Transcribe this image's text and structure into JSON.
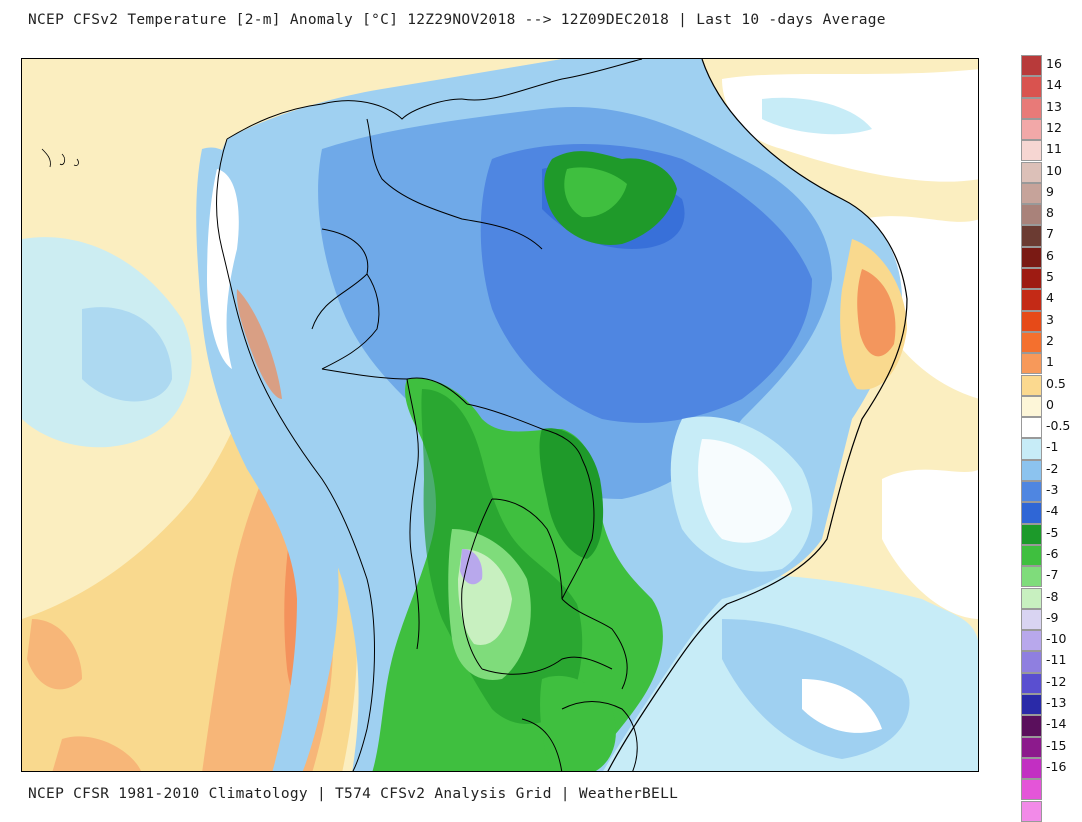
{
  "header": {
    "title": "NCEP CFSv2 Temperature [2-m] Anomaly  [°C] 12Z29NOV2018 --> 12Z09DEC2018 | Last 10 -days Average"
  },
  "footer": {
    "text": "NCEP CFSR 1981-2010 Climatology | T574 CFSv2 Analysis Grid | WeatherBELL"
  },
  "map": {
    "variable": "2-m temperature anomaly",
    "units": "°C",
    "region": "South America",
    "colors": {
      "warm_light": "#fbeec0",
      "warm_med": "#f9d98e",
      "warm_strong": "#f7b678",
      "warm_hot": "#f28a55",
      "neutral": "#ffffff",
      "cool_light": "#c7ecf7",
      "cool_med": "#9fd0f1",
      "cool_strong": "#6fa9e8",
      "cool_deep": "#4f86e1",
      "cool_deeper": "#2f66d6",
      "green_light": "#7fdc7b",
      "green_med": "#3fbf3f",
      "green_dark": "#1f9a2a",
      "lavender": "#c9b8ee",
      "violet": "#a795e6",
      "border": "#000000"
    }
  },
  "colorbar": {
    "entries": [
      {
        "label": "16",
        "color": "#b83a3a"
      },
      {
        "label": "14",
        "color": "#d9534f"
      },
      {
        "label": "13",
        "color": "#e87a78"
      },
      {
        "label": "12",
        "color": "#f2a8a8"
      },
      {
        "label": "11",
        "color": "#f6d6d2"
      },
      {
        "label": "10",
        "color": "#dcc0b8"
      },
      {
        "label": "9",
        "color": "#c6a39a"
      },
      {
        "label": "8",
        "color": "#a9827a"
      },
      {
        "label": "7",
        "color": "#6b3b32"
      },
      {
        "label": "6",
        "color": "#7a1a14"
      },
      {
        "label": "5",
        "color": "#9e1b12"
      },
      {
        "label": "4",
        "color": "#c42a16"
      },
      {
        "label": "3",
        "color": "#e64a18"
      },
      {
        "label": "2",
        "color": "#f4702e"
      },
      {
        "label": "1",
        "color": "#f7995a"
      },
      {
        "label": "0.5",
        "color": "#fbd98f"
      },
      {
        "label": "0",
        "color": "#fdf6d8"
      },
      {
        "label": "-0.5",
        "color": "#ffffff"
      },
      {
        "label": "-1",
        "color": "#c7ecf7"
      },
      {
        "label": "-2",
        "color": "#8cc3ef"
      },
      {
        "label": "-3",
        "color": "#4f86e1"
      },
      {
        "label": "-4",
        "color": "#2f66d6"
      },
      {
        "label": "-5",
        "color": "#1c9a2a"
      },
      {
        "label": "-6",
        "color": "#3fbf3f"
      },
      {
        "label": "-7",
        "color": "#7fdc7b"
      },
      {
        "label": "-8",
        "color": "#c8f0c0"
      },
      {
        "label": "-9",
        "color": "#d9d4f2"
      },
      {
        "label": "-10",
        "color": "#b8a8ec"
      },
      {
        "label": "-11",
        "color": "#8f7fe0"
      },
      {
        "label": "-12",
        "color": "#5a4fd0"
      },
      {
        "label": "-13",
        "color": "#2a2aa8"
      },
      {
        "label": "-14",
        "color": "#5a0f5c"
      },
      {
        "label": "-15",
        "color": "#8c1a8c"
      },
      {
        "label": "-16",
        "color": "#c22fc2"
      },
      {
        "label": "",
        "color": "#e455d8"
      },
      {
        "label": "",
        "color": "#f28ae8"
      }
    ]
  }
}
